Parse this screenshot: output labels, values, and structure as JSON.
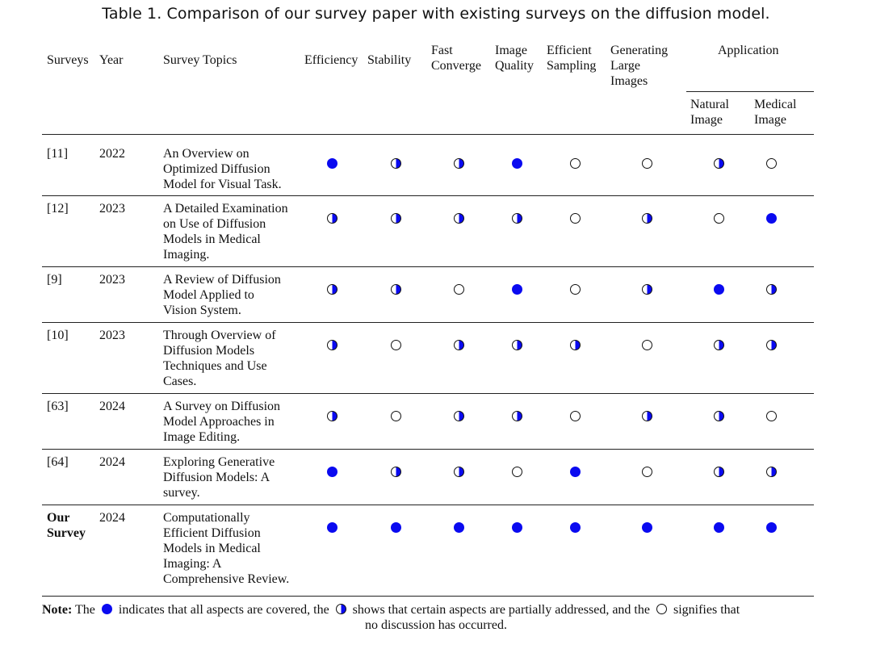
{
  "caption": "Table 1.  Comparison of our survey paper with existing surveys on the diffusion model.",
  "headers": {
    "surveys": "Surveys",
    "year": "Year",
    "topics": "Survey Topics",
    "efficiency": "Efficiency",
    "stability": "Stability",
    "fast_converge": "Fast\nConverge",
    "image_quality": "Image\nQuality",
    "efficient_sampling": "Efficient\nSampling",
    "generating_large_images": "Generating\nLarge\nImages",
    "application": "Application",
    "natural_image": "Natural\nImage",
    "medical_image": "Medical\nImage"
  },
  "legend": {
    "full": "all aspects covered",
    "half": "partially addressed",
    "empty": "no discussion"
  },
  "colors": {
    "full_dot": "#0a0af0",
    "rule": "#222222"
  },
  "rows": [
    {
      "survey": "[11]",
      "year": "2022",
      "topic": "An Overview on\nOptimized Diffusion\nModel for Visual Task.",
      "marks": [
        "full",
        "half",
        "half",
        "full",
        "empty",
        "empty",
        "half",
        "empty"
      ]
    },
    {
      "survey": "[12]",
      "year": "2023",
      "topic": "A Detailed Examination\non Use of Diffusion\nModels in Medical\nImaging.",
      "marks": [
        "half",
        "half",
        "half",
        "half",
        "empty",
        "half",
        "empty",
        "full"
      ]
    },
    {
      "survey": "[9]",
      "year": "2023",
      "topic": "A Review of Diffusion\nModel Applied to\nVision System.",
      "marks": [
        "half",
        "half",
        "empty",
        "full",
        "empty",
        "half",
        "full",
        "half"
      ]
    },
    {
      "survey": "[10]",
      "year": "2023",
      "topic": "Through Overview of\nDiffusion Models\nTechniques and Use\nCases.",
      "marks": [
        "half",
        "empty",
        "half",
        "half",
        "half",
        "empty",
        "half",
        "half"
      ]
    },
    {
      "survey": "[63]",
      "year": "2024",
      "topic": "A Survey on Diffusion\nModel Approaches in\nImage Editing.",
      "marks": [
        "half",
        "empty",
        "half",
        "half",
        "empty",
        "half",
        "half",
        "empty"
      ]
    },
    {
      "survey": "[64]",
      "year": "2024",
      "topic": "Exploring Generative\nDiffusion Models: A\nsurvey.",
      "marks": [
        "full",
        "half",
        "half",
        "empty",
        "full",
        "empty",
        "half",
        "half"
      ]
    },
    {
      "survey": "Our\nSurvey",
      "year": "2024",
      "topic": "Computationally\nEfficient Diffusion\nModels in Medical\nImaging: A\nComprehensive Review.",
      "marks": [
        "full",
        "full",
        "full",
        "full",
        "full",
        "full",
        "full",
        "full"
      ]
    }
  ],
  "note": {
    "label": "Note:",
    "part1": " The",
    "part2": "indicates that all aspects are covered, the",
    "part3": "shows that certain aspects are partially addressed, and the",
    "part4": "signifies that",
    "line2": "no discussion has occurred."
  }
}
